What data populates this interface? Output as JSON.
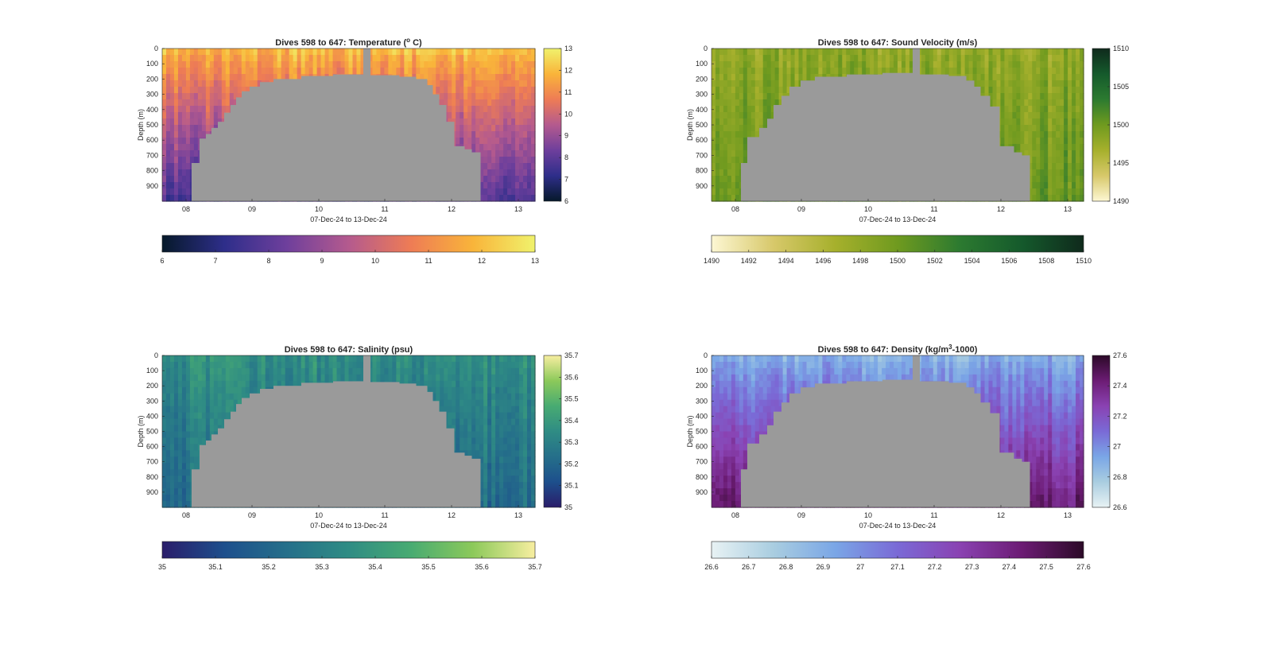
{
  "chart_data": [
    {
      "type": "heatmap",
      "title_parts": [
        "Dives 598 to 647: Temperature (",
        "o",
        " C)"
      ],
      "xlabel": "07-Dec-24 to 13-Dec-24",
      "ylabel": "Depth (m)",
      "x_ticks": [
        "08",
        "09",
        "10",
        "11",
        "12",
        "13"
      ],
      "y_ticks": [
        "0",
        "100",
        "200",
        "300",
        "400",
        "500",
        "600",
        "700",
        "800",
        "900"
      ],
      "ylim": [
        0,
        1000
      ],
      "colorbar_right_ticks": [
        "6",
        "7",
        "8",
        "9",
        "10",
        "11",
        "12",
        "13"
      ],
      "colorbar_bottom_ticks": [
        "6",
        "7",
        "8",
        "9",
        "10",
        "11",
        "12",
        "13"
      ],
      "clim": [
        6,
        13
      ],
      "colormap": [
        "#06192a",
        "#2e2e8a",
        "#6e3f9c",
        "#b45a8e",
        "#ee7c55",
        "#f9b43a",
        "#f0f26c"
      ],
      "profile": {
        "surface": 11.9,
        "bottom": 7.6
      }
    },
    {
      "type": "heatmap",
      "title_parts": [
        "Dives 598 to 647: Sound Velocity (m/s)"
      ],
      "xlabel": "07-Dec-24 to 13-Dec-24",
      "ylabel": "Depth (m)",
      "x_ticks": [
        "08",
        "09",
        "10",
        "11",
        "12",
        "13"
      ],
      "y_ticks": [
        "0",
        "100",
        "200",
        "300",
        "400",
        "500",
        "600",
        "700",
        "800",
        "900"
      ],
      "ylim": [
        0,
        1000
      ],
      "colorbar_right_ticks": [
        "1490",
        "1495",
        "1500",
        "1505",
        "1510"
      ],
      "colorbar_bottom_ticks": [
        "1490",
        "1492",
        "1494",
        "1496",
        "1498",
        "1500",
        "1502",
        "1504",
        "1506",
        "1508",
        "1510"
      ],
      "clim": [
        1490,
        1510
      ],
      "colormap": [
        "#fdf7d3",
        "#d7c86a",
        "#a6b02c",
        "#6f9a1f",
        "#2c7a30",
        "#155a2c",
        "#0f2a1c"
      ],
      "profile": {
        "surface": 1498.0,
        "bottom": 1500.5
      }
    },
    {
      "type": "heatmap",
      "title_parts": [
        "Dives 598 to 647: Salinity (psu)"
      ],
      "xlabel": "07-Dec-24 to 13-Dec-24",
      "ylabel": "Depth (m)",
      "x_ticks": [
        "08",
        "09",
        "10",
        "11",
        "12",
        "13"
      ],
      "y_ticks": [
        "0",
        "100",
        "200",
        "300",
        "400",
        "500",
        "600",
        "700",
        "800",
        "900"
      ],
      "ylim": [
        0,
        1000
      ],
      "colorbar_right_ticks": [
        "35",
        "35.1",
        "35.2",
        "35.3",
        "35.4",
        "35.5",
        "35.6",
        "35.7"
      ],
      "colorbar_bottom_ticks": [
        "35",
        "35.1",
        "35.2",
        "35.3",
        "35.4",
        "35.5",
        "35.6",
        "35.7"
      ],
      "clim": [
        35,
        35.7
      ],
      "colormap": [
        "#2a1d6a",
        "#1d4f8c",
        "#256f8a",
        "#2f8c84",
        "#48ab72",
        "#8cc95a",
        "#f7eea0"
      ],
      "profile": {
        "surface": 35.36,
        "bottom": 35.22
      }
    },
    {
      "type": "heatmap",
      "title_parts": [
        "Dives 598 to 647: Density (kg/m",
        "3",
        "-1000)"
      ],
      "xlabel": "07-Dec-24 to 13-Dec-24",
      "ylabel": "Depth (m)",
      "x_ticks": [
        "08",
        "09",
        "10",
        "11",
        "12",
        "13"
      ],
      "y_ticks": [
        "0",
        "100",
        "200",
        "300",
        "400",
        "500",
        "600",
        "700",
        "800",
        "900"
      ],
      "ylim": [
        0,
        1000
      ],
      "colorbar_right_ticks": [
        "26.6",
        "26.8",
        "27",
        "27.2",
        "27.4",
        "27.6"
      ],
      "colorbar_bottom_ticks": [
        "26.6",
        "26.7",
        "26.8",
        "26.9",
        "27",
        "27.1",
        "27.2",
        "27.3",
        "27.4",
        "27.5",
        "27.6"
      ],
      "clim": [
        26.6,
        27.6
      ],
      "colormap": [
        "#e8f2f4",
        "#a9cde0",
        "#7aa6e6",
        "#7a6ad6",
        "#8a42b2",
        "#6c1c74",
        "#2c0a28"
      ],
      "profile": {
        "surface": 26.9,
        "bottom": 27.45
      }
    }
  ],
  "mask_color": "#9a9a9a"
}
